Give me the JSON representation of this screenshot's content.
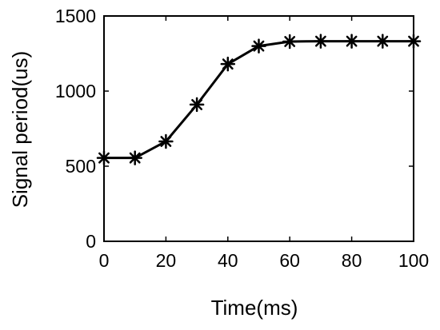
{
  "chart_data": {
    "type": "line",
    "title": "",
    "xlabel": "Time(ms)",
    "ylabel": "Signal period(us)",
    "xlim": [
      0,
      100
    ],
    "ylim": [
      0,
      1500
    ],
    "xticks": [
      0,
      20,
      40,
      60,
      80,
      100
    ],
    "yticks": [
      0,
      500,
      1000,
      1500
    ],
    "grid": false,
    "marker": "asterisk",
    "line_color": "#000000",
    "series": [
      {
        "x": [
          0,
          10,
          20,
          30,
          40,
          50,
          60,
          70,
          80,
          90,
          100
        ],
        "y": [
          555,
          555,
          665,
          910,
          1180,
          1300,
          1330,
          1332,
          1332,
          1332,
          1332
        ]
      }
    ]
  }
}
